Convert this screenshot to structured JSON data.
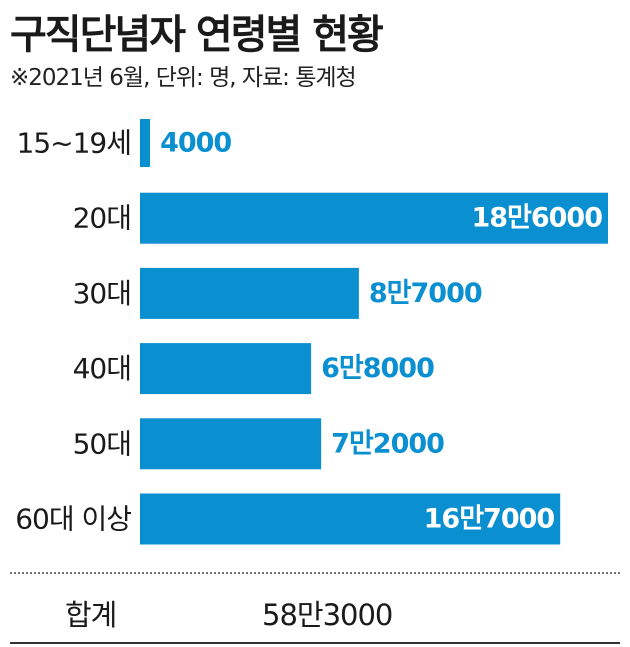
{
  "header": {
    "title": "구직단념자 연령별 현황",
    "note": "※2021년 6월, 단위: 명, 자료: 통계청"
  },
  "colors": {
    "bar": "#0a8fd0",
    "value_inside": "#ffffff",
    "value_outside": "#0a8fd0"
  },
  "chart_data": {
    "type": "bar",
    "orientation": "horizontal",
    "title": "구직단념자 연령별 현황",
    "subtitle": "※2021년 6월, 단위: 명, 자료: 통계청",
    "categories": [
      "15~19세",
      "20대",
      "30대",
      "40대",
      "50대",
      "60대 이상"
    ],
    "values": [
      4000,
      186000,
      87000,
      68000,
      72000,
      167000
    ],
    "value_labels": [
      "4000",
      "18만6000",
      "8만7000",
      "6만8000",
      "7만2000",
      "16만7000"
    ],
    "xlim": [
      0,
      186000
    ],
    "grid": false,
    "legend": "none"
  },
  "summary": {
    "label": "합계",
    "value": "58만3000"
  }
}
